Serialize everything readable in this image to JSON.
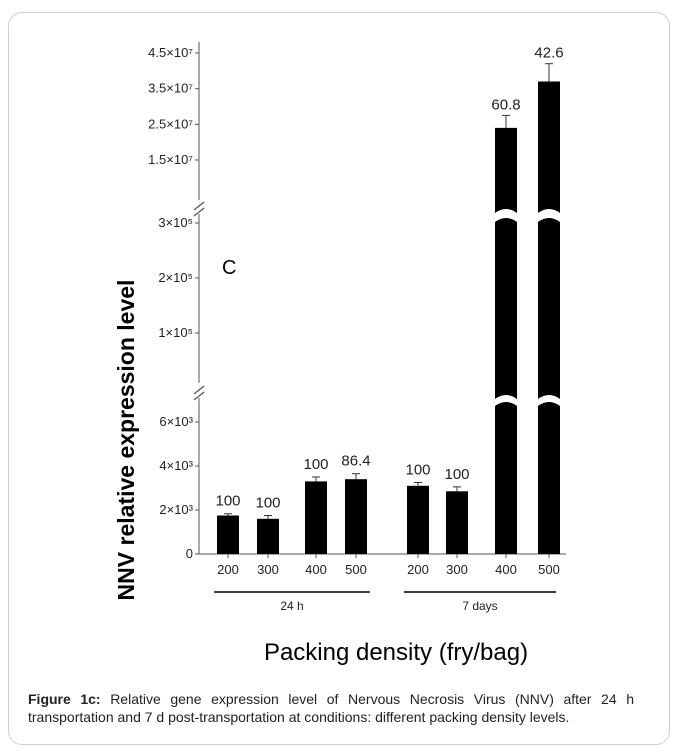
{
  "chart_data": {
    "type": "bar",
    "panel_label": "C",
    "ylabel": "NNV relative expression level",
    "xlabel": "Packing density (fry/bag)",
    "axis_break": true,
    "segments": {
      "lower": {
        "ylim": [
          0,
          7000
        ],
        "ticks": [
          0,
          2000,
          4000,
          6000
        ],
        "tick_labels": [
          "0",
          "2×10³",
          "4×10³",
          "6×10³"
        ]
      },
      "middle": {
        "ylim": [
          0,
          320000
        ],
        "ticks": [
          100000,
          200000,
          300000
        ],
        "tick_labels": [
          "1×10⁵",
          "2×10⁵",
          "3×10⁵"
        ]
      },
      "upper": {
        "ylim": [
          10000000,
          45000000
        ],
        "ticks": [
          15000000,
          25000000,
          35000000,
          45000000
        ],
        "tick_labels": [
          "1.5×10⁷",
          "2.5×10⁷",
          "3.5×10⁷",
          "4.5×10⁷"
        ]
      }
    },
    "categories": [
      "200",
      "300",
      "400",
      "500",
      "200",
      "300",
      "400",
      "500"
    ],
    "groups": [
      {
        "label": "24 h",
        "indices": [
          0,
          1,
          2,
          3
        ]
      },
      {
        "label": "7 days",
        "indices": [
          4,
          5,
          6,
          7
        ]
      }
    ],
    "values": [
      1750,
      1600,
      3300,
      3400,
      3100,
      2850,
      24000000,
      37000000
    ],
    "errors": [
      80,
      150,
      200,
      250,
      150,
      200,
      3500000,
      5000000
    ],
    "bar_labels": [
      "100",
      "100",
      "100",
      "86.4",
      "100",
      "100",
      "60.8",
      "42.6"
    ],
    "grid": false,
    "colors": {
      "bar": "#000000",
      "axis": "#555555"
    }
  },
  "caption": {
    "label": "Figure 1c:",
    "text": " Relative gene expression level of Nervous Necrosis Virus (NNV) after 24 h transportation and 7 d post-transportation at conditions: different packing density levels."
  }
}
